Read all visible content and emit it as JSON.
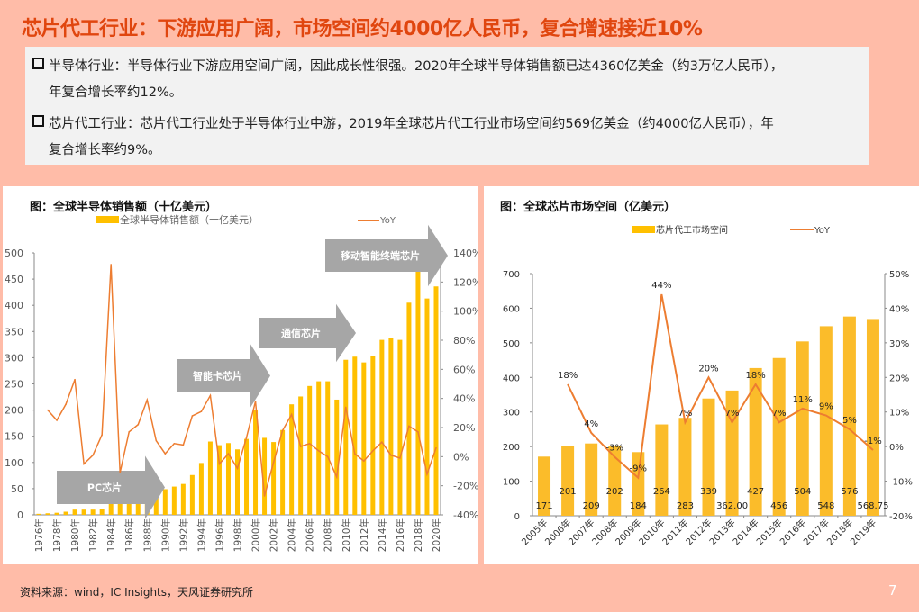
{
  "title": "芯片代工行业：下游应用广阔，市场空间约4000亿人民币，复合增速接近10%",
  "bullets": [
    {
      "line1": "半导体行业：半导体行业下游应用空间广阔，因此成长性很强。2020年全球半导体销售额已达4360亿美金（约3万亿人民币），",
      "line2": "年复合增长率约12%。"
    },
    {
      "line1": "芯片代工行业：芯片代工行业处于半导体行业中游，2019年全球芯片代工行业市场空间约569亿美金（约4000亿人民币），年",
      "line2": "复合增长率约9%。"
    }
  ],
  "footer": "资料来源：wind，IC Insights，天风证券研究所",
  "page_number": "7",
  "colors": {
    "bar": "#FFC000",
    "line": "#ED7D31",
    "arrow": "#A6A6A6",
    "title": "#E0460F",
    "background": "#FFBCA8"
  },
  "chart_data": [
    {
      "type": "bar+line",
      "title": "图：全球半导体销售额（十亿美元）",
      "legend": [
        "全球半导体销售额（十亿美元）",
        "YoY"
      ],
      "legend_position": "top",
      "categories": [
        "1976年",
        "1977年",
        "1978年",
        "1979年",
        "1980年",
        "1981年",
        "1982年",
        "1983年",
        "1984年",
        "1985年",
        "1986年",
        "1987年",
        "1988年",
        "1989年",
        "1990年",
        "1991年",
        "1992年",
        "1993年",
        "1994年",
        "1995年",
        "1996年",
        "1997年",
        "1998年",
        "1999年",
        "2000年",
        "2001年",
        "2002年",
        "2003年",
        "2004年",
        "2005年",
        "2006年",
        "2007年",
        "2008年",
        "2009年",
        "2010年",
        "2011年",
        "2012年",
        "2013年",
        "2014年",
        "2015年",
        "2016年",
        "2017年",
        "2018年",
        "2019年",
        "2020年"
      ],
      "x_tick_labels": [
        "1976年",
        "1978年",
        "1980年",
        "1982年",
        "1984年",
        "1986年",
        "1988年",
        "1990年",
        "1992年",
        "1994年",
        "1996年",
        "1998年",
        "2000年",
        "2002年",
        "2004年",
        "2006年",
        "2008年",
        "2010年",
        "2012年",
        "2014年",
        "2016年",
        "2018年",
        "2020年"
      ],
      "series": [
        {
          "name": "全球半导体销售额（十亿美元）",
          "type": "bar",
          "axis": "left",
          "values": [
            2,
            3,
            4,
            6,
            10,
            10,
            10,
            11,
            25,
            22,
            26,
            31,
            40,
            44,
            49,
            54,
            59,
            76,
            99,
            140,
            133,
            137,
            125,
            145,
            200,
            147,
            139,
            162,
            211,
            226,
            246,
            255,
            255,
            220,
            296,
            302,
            291,
            303,
            334,
            337,
            334,
            405,
            471,
            413,
            436
          ]
        },
        {
          "name": "YoY",
          "type": "line",
          "axis": "right",
          "values": [
            null,
            32,
            25,
            36,
            53,
            -5,
            1,
            15,
            132,
            -11,
            17,
            22,
            39,
            11,
            2,
            9,
            8,
            28,
            31,
            42,
            -5,
            2,
            -8,
            13,
            38,
            -27,
            -4,
            18,
            29,
            7,
            9,
            4,
            0,
            -14,
            34,
            2,
            -3,
            4,
            10,
            1,
            -1,
            21,
            17,
            -12,
            6
          ]
        }
      ],
      "ylim_left": [
        0,
        500
      ],
      "yticks_left": [
        "0",
        "50",
        "100",
        "150",
        "200",
        "250",
        "300",
        "350",
        "400",
        "450",
        "500"
      ],
      "ylim_right": [
        -40,
        140
      ],
      "yticks_right": [
        "-40%",
        "-20%",
        "0%",
        "20%",
        "40%",
        "60%",
        "80%",
        "100%",
        "120%",
        "140%"
      ],
      "annotations": [
        "PC芯片",
        "智能卡芯片",
        "通信芯片",
        "移动智能终端芯片"
      ],
      "grid": false
    },
    {
      "type": "bar+line",
      "title": "图：全球芯片市场空间（亿美元）",
      "legend": [
        "芯片代工市场空间",
        "YoY"
      ],
      "legend_position": "top",
      "categories": [
        "2005年",
        "2006年",
        "2007年",
        "2008年",
        "2009年",
        "2010年",
        "2011年",
        "2012年",
        "2013年",
        "2014年",
        "2015年",
        "2016年",
        "2017年",
        "2018年",
        "2019年"
      ],
      "series": [
        {
          "name": "芯片代工市场空间",
          "type": "bar",
          "axis": "left",
          "values": [
            171,
            201,
            209,
            202,
            184,
            264,
            283,
            339,
            362,
            427,
            456,
            504,
            548,
            576,
            568.75
          ],
          "labels": [
            "171",
            "201",
            "209",
            "202",
            "184",
            "264",
            "283",
            "339",
            "362.00",
            "427",
            "456",
            "504",
            "548",
            "576",
            "568.75"
          ]
        },
        {
          "name": "YoY",
          "type": "line",
          "axis": "right",
          "values": [
            null,
            18,
            4,
            -3,
            -9,
            44,
            7,
            20,
            7,
            18,
            7,
            11,
            9,
            5,
            -1
          ],
          "labels": [
            "",
            "18%",
            "4%",
            "-3%",
            "-9%",
            "44%",
            "7%",
            "20%",
            "7%",
            "18%",
            "7%",
            "11%",
            "9%",
            "5%",
            "-1%"
          ]
        }
      ],
      "ylim_left": [
        0,
        700
      ],
      "yticks_left": [
        "0",
        "100",
        "200",
        "300",
        "400",
        "500",
        "600",
        "700"
      ],
      "ylim_right": [
        -20,
        50
      ],
      "yticks_right": [
        "-20%",
        "-10%",
        "0%",
        "10%",
        "20%",
        "30%",
        "40%",
        "50%"
      ],
      "grid": false
    }
  ]
}
